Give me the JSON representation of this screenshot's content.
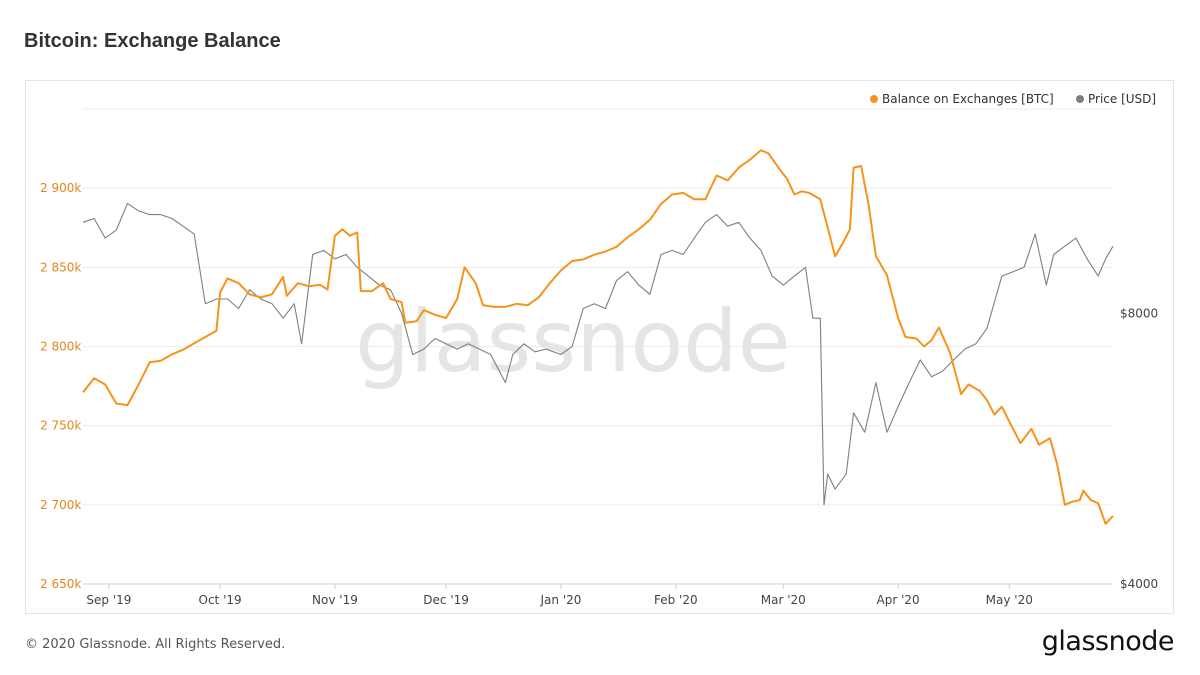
{
  "header": {
    "title": "Bitcoin: Exchange Balance"
  },
  "footer": {
    "copyright": "© 2020 Glassnode. All Rights Reserved.",
    "logo": "glassnode"
  },
  "watermark": "glassnode",
  "colors": {
    "balance": "#f7931a",
    "price": "#7f7f7f",
    "grid": "#ececec"
  },
  "chart_data": {
    "type": "line",
    "title": "Bitcoin: Exchange Balance",
    "x_ticks": [
      "Sep '19",
      "Oct '19",
      "Nov '19",
      "Dec '19",
      "Jan '20",
      "Feb '20",
      "Mar '20",
      "Apr '20",
      "May '20"
    ],
    "x_range": [
      "2019-08-25",
      "2020-05-29"
    ],
    "legend": {
      "position": "top-right",
      "items": [
        "Balance on Exchanges [BTC]",
        "Price [USD]"
      ]
    },
    "grid": true,
    "y_left": {
      "ticks": [
        2650000,
        2700000,
        2750000,
        2800000,
        2850000,
        2900000
      ],
      "tick_labels": [
        "2 650k",
        "2 700k",
        "2 750k",
        "2 800k",
        "2 850k",
        "2 900k"
      ],
      "range": [
        2650000,
        2950000
      ]
    },
    "y_right": {
      "ticks": [
        4000,
        8000
      ],
      "tick_labels": [
        "$4000",
        "$8000"
      ],
      "scale": "log",
      "range": [
        4000,
        13500
      ]
    },
    "series": [
      {
        "name": "Balance on Exchanges [BTC]",
        "axis": "left",
        "points": [
          [
            "2019-08-25",
            2771000
          ],
          [
            "2019-08-28",
            2780000
          ],
          [
            "2019-08-31",
            2776000
          ],
          [
            "2019-09-03",
            2764000
          ],
          [
            "2019-09-06",
            2763000
          ],
          [
            "2019-09-09",
            2776000
          ],
          [
            "2019-09-12",
            2790000
          ],
          [
            "2019-09-15",
            2791000
          ],
          [
            "2019-09-18",
            2795000
          ],
          [
            "2019-09-21",
            2798000
          ],
          [
            "2019-09-24",
            2802000
          ],
          [
            "2019-09-27",
            2806000
          ],
          [
            "2019-09-30",
            2810000
          ],
          [
            "2019-10-01",
            2834000
          ],
          [
            "2019-10-03",
            2843000
          ],
          [
            "2019-10-06",
            2840000
          ],
          [
            "2019-10-09",
            2833000
          ],
          [
            "2019-10-12",
            2831000
          ],
          [
            "2019-10-15",
            2833000
          ],
          [
            "2019-10-18",
            2844000
          ],
          [
            "2019-10-19",
            2832000
          ],
          [
            "2019-10-22",
            2840000
          ],
          [
            "2019-10-25",
            2838000
          ],
          [
            "2019-10-28",
            2839000
          ],
          [
            "2019-10-30",
            2836000
          ],
          [
            "2019-11-01",
            2870000
          ],
          [
            "2019-11-03",
            2874000
          ],
          [
            "2019-11-05",
            2870000
          ],
          [
            "2019-11-07",
            2872000
          ],
          [
            "2019-11-08",
            2835000
          ],
          [
            "2019-11-11",
            2835000
          ],
          [
            "2019-11-14",
            2840000
          ],
          [
            "2019-11-16",
            2830000
          ],
          [
            "2019-11-19",
            2828000
          ],
          [
            "2019-11-20",
            2815000
          ],
          [
            "2019-11-23",
            2816000
          ],
          [
            "2019-11-25",
            2823000
          ],
          [
            "2019-11-28",
            2820000
          ],
          [
            "2019-12-01",
            2818000
          ],
          [
            "2019-12-04",
            2830000
          ],
          [
            "2019-12-06",
            2850000
          ],
          [
            "2019-12-09",
            2840000
          ],
          [
            "2019-12-11",
            2826000
          ],
          [
            "2019-12-14",
            2825000
          ],
          [
            "2019-12-17",
            2825000
          ],
          [
            "2019-12-20",
            2827000
          ],
          [
            "2019-12-23",
            2826000
          ],
          [
            "2019-12-26",
            2831000
          ],
          [
            "2019-12-29",
            2840000
          ],
          [
            "2020-01-01",
            2848000
          ],
          [
            "2020-01-04",
            2854000
          ],
          [
            "2020-01-07",
            2855000
          ],
          [
            "2020-01-10",
            2858000
          ],
          [
            "2020-01-13",
            2860000
          ],
          [
            "2020-01-16",
            2863000
          ],
          [
            "2020-01-19",
            2869000
          ],
          [
            "2020-01-22",
            2874000
          ],
          [
            "2020-01-25",
            2880000
          ],
          [
            "2020-01-28",
            2890000
          ],
          [
            "2020-01-31",
            2896000
          ],
          [
            "2020-02-03",
            2897000
          ],
          [
            "2020-02-06",
            2893000
          ],
          [
            "2020-02-09",
            2893000
          ],
          [
            "2020-02-12",
            2908000
          ],
          [
            "2020-02-15",
            2905000
          ],
          [
            "2020-02-18",
            2913000
          ],
          [
            "2020-02-21",
            2918000
          ],
          [
            "2020-02-24",
            2924000
          ],
          [
            "2020-02-26",
            2922000
          ],
          [
            "2020-02-29",
            2912000
          ],
          [
            "2020-03-02",
            2906000
          ],
          [
            "2020-03-04",
            2896000
          ],
          [
            "2020-03-06",
            2898000
          ],
          [
            "2020-03-08",
            2897000
          ],
          [
            "2020-03-11",
            2893000
          ],
          [
            "2020-03-13",
            2875000
          ],
          [
            "2020-03-15",
            2857000
          ],
          [
            "2020-03-17",
            2865000
          ],
          [
            "2020-03-19",
            2874000
          ],
          [
            "2020-03-20",
            2913000
          ],
          [
            "2020-03-22",
            2914000
          ],
          [
            "2020-03-24",
            2890000
          ],
          [
            "2020-03-26",
            2857000
          ],
          [
            "2020-03-29",
            2845000
          ],
          [
            "2020-04-01",
            2818000
          ],
          [
            "2020-04-03",
            2806000
          ],
          [
            "2020-04-06",
            2805000
          ],
          [
            "2020-04-08",
            2800000
          ],
          [
            "2020-04-10",
            2804000
          ],
          [
            "2020-04-12",
            2812000
          ],
          [
            "2020-04-15",
            2796000
          ],
          [
            "2020-04-18",
            2770000
          ],
          [
            "2020-04-20",
            2776000
          ],
          [
            "2020-04-23",
            2772000
          ],
          [
            "2020-04-25",
            2766000
          ],
          [
            "2020-04-27",
            2757000
          ],
          [
            "2020-04-29",
            2762000
          ],
          [
            "2020-05-02",
            2748000
          ],
          [
            "2020-05-04",
            2739000
          ],
          [
            "2020-05-07",
            2748000
          ],
          [
            "2020-05-09",
            2738000
          ],
          [
            "2020-05-12",
            2742000
          ],
          [
            "2020-05-14",
            2725000
          ],
          [
            "2020-05-16",
            2700000
          ],
          [
            "2020-05-18",
            2702000
          ],
          [
            "2020-05-20",
            2703000
          ],
          [
            "2020-05-21",
            2709000
          ],
          [
            "2020-05-23",
            2703000
          ],
          [
            "2020-05-25",
            2701000
          ],
          [
            "2020-05-27",
            2688000
          ],
          [
            "2020-05-29",
            2693000
          ]
        ]
      },
      {
        "name": "Price [USD]",
        "axis": "right",
        "points": [
          [
            "2019-08-25",
            10100
          ],
          [
            "2019-08-28",
            10200
          ],
          [
            "2019-08-31",
            9700
          ],
          [
            "2019-09-03",
            9900
          ],
          [
            "2019-09-06",
            10600
          ],
          [
            "2019-09-09",
            10400
          ],
          [
            "2019-09-12",
            10300
          ],
          [
            "2019-09-15",
            10300
          ],
          [
            "2019-09-18",
            10200
          ],
          [
            "2019-09-21",
            10000
          ],
          [
            "2019-09-24",
            9800
          ],
          [
            "2019-09-27",
            8200
          ],
          [
            "2019-09-30",
            8300
          ],
          [
            "2019-10-03",
            8300
          ],
          [
            "2019-10-06",
            8100
          ],
          [
            "2019-10-09",
            8500
          ],
          [
            "2019-10-12",
            8300
          ],
          [
            "2019-10-15",
            8200
          ],
          [
            "2019-10-18",
            7900
          ],
          [
            "2019-10-21",
            8200
          ],
          [
            "2019-10-23",
            7400
          ],
          [
            "2019-10-26",
            9300
          ],
          [
            "2019-10-29",
            9400
          ],
          [
            "2019-11-01",
            9200
          ],
          [
            "2019-11-04",
            9300
          ],
          [
            "2019-11-07",
            9000
          ],
          [
            "2019-11-10",
            8800
          ],
          [
            "2019-11-13",
            8600
          ],
          [
            "2019-11-16",
            8500
          ],
          [
            "2019-11-19",
            8000
          ],
          [
            "2019-11-22",
            7200
          ],
          [
            "2019-11-25",
            7300
          ],
          [
            "2019-11-28",
            7500
          ],
          [
            "2019-12-01",
            7400
          ],
          [
            "2019-12-04",
            7300
          ],
          [
            "2019-12-07",
            7400
          ],
          [
            "2019-12-10",
            7300
          ],
          [
            "2019-12-13",
            7200
          ],
          [
            "2019-12-17",
            6700
          ],
          [
            "2019-12-19",
            7200
          ],
          [
            "2019-12-22",
            7400
          ],
          [
            "2019-12-25",
            7250
          ],
          [
            "2019-12-28",
            7300
          ],
          [
            "2020-01-01",
            7200
          ],
          [
            "2020-01-04",
            7350
          ],
          [
            "2020-01-07",
            8100
          ],
          [
            "2020-01-10",
            8200
          ],
          [
            "2020-01-13",
            8100
          ],
          [
            "2020-01-16",
            8700
          ],
          [
            "2020-01-19",
            8900
          ],
          [
            "2020-01-22",
            8600
          ],
          [
            "2020-01-25",
            8400
          ],
          [
            "2020-01-28",
            9300
          ],
          [
            "2020-01-31",
            9400
          ],
          [
            "2020-02-03",
            9300
          ],
          [
            "2020-02-06",
            9700
          ],
          [
            "2020-02-09",
            10100
          ],
          [
            "2020-02-12",
            10300
          ],
          [
            "2020-02-15",
            10000
          ],
          [
            "2020-02-18",
            10100
          ],
          [
            "2020-02-21",
            9700
          ],
          [
            "2020-02-24",
            9400
          ],
          [
            "2020-02-27",
            8800
          ],
          [
            "2020-03-01",
            8600
          ],
          [
            "2020-03-04",
            8800
          ],
          [
            "2020-03-07",
            9000
          ],
          [
            "2020-03-09",
            7900
          ],
          [
            "2020-03-11",
            7900
          ],
          [
            "2020-03-12",
            4900
          ],
          [
            "2020-03-13",
            5300
          ],
          [
            "2020-03-15",
            5100
          ],
          [
            "2020-03-18",
            5300
          ],
          [
            "2020-03-20",
            6200
          ],
          [
            "2020-03-23",
            5900
          ],
          [
            "2020-03-26",
            6700
          ],
          [
            "2020-03-29",
            5900
          ],
          [
            "2020-04-01",
            6300
          ],
          [
            "2020-04-04",
            6700
          ],
          [
            "2020-04-07",
            7100
          ],
          [
            "2020-04-10",
            6800
          ],
          [
            "2020-04-13",
            6900
          ],
          [
            "2020-04-16",
            7100
          ],
          [
            "2020-04-19",
            7300
          ],
          [
            "2020-04-22",
            7400
          ],
          [
            "2020-04-25",
            7700
          ],
          [
            "2020-04-29",
            8800
          ],
          [
            "2020-05-02",
            8900
          ],
          [
            "2020-05-05",
            9000
          ],
          [
            "2020-05-08",
            9800
          ],
          [
            "2020-05-11",
            8600
          ],
          [
            "2020-05-13",
            9300
          ],
          [
            "2020-05-16",
            9500
          ],
          [
            "2020-05-19",
            9700
          ],
          [
            "2020-05-22",
            9200
          ],
          [
            "2020-05-25",
            8800
          ],
          [
            "2020-05-27",
            9200
          ],
          [
            "2020-05-29",
            9500
          ]
        ]
      }
    ]
  }
}
